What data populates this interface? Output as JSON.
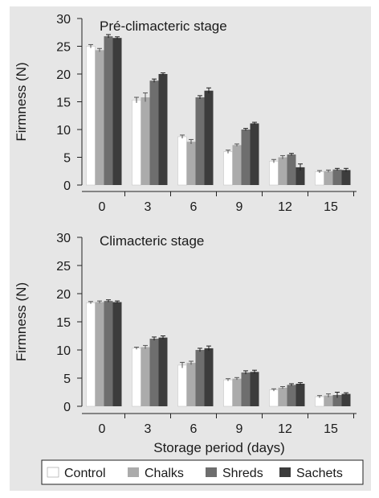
{
  "chart_data": [
    {
      "type": "bar",
      "title": "Pré-climacteric stage",
      "xlabel": "",
      "ylabel": "Firmness (N)",
      "ylim": [
        0,
        30
      ],
      "yticks": [
        "0",
        "5",
        "10",
        "15",
        "20",
        "25",
        "30"
      ],
      "categories": [
        "0",
        "3",
        "6",
        "9",
        "12",
        "15"
      ],
      "series": [
        {
          "name": "Control",
          "values": [
            25.0,
            15.3,
            8.7,
            6.0,
            4.3,
            2.4
          ],
          "errors": [
            0.3,
            0.5,
            0.3,
            0.3,
            0.3,
            0.2
          ]
        },
        {
          "name": "Chalks",
          "values": [
            24.3,
            15.8,
            7.8,
            7.2,
            5.0,
            2.5
          ],
          "errors": [
            0.3,
            0.8,
            0.4,
            0.2,
            0.3,
            0.2
          ]
        },
        {
          "name": "Shreds",
          "values": [
            26.8,
            18.8,
            15.8,
            10.0,
            5.5,
            2.8
          ],
          "errors": [
            0.3,
            0.3,
            0.3,
            0.2,
            0.2,
            0.2
          ]
        },
        {
          "name": "Sachets",
          "values": [
            26.5,
            20.0,
            17.0,
            11.1,
            3.2,
            2.7
          ],
          "errors": [
            0.2,
            0.2,
            0.5,
            0.2,
            0.6,
            0.3
          ]
        }
      ]
    },
    {
      "type": "bar",
      "title": "Climacteric stage",
      "xlabel": "Storage period (days)",
      "ylabel": "Firmness (N)",
      "ylim": [
        0,
        30
      ],
      "yticks": [
        "0",
        "5",
        "10",
        "15",
        "20",
        "25",
        "30"
      ],
      "categories": [
        "0",
        "3",
        "6",
        "9",
        "12",
        "15"
      ],
      "series": [
        {
          "name": "Control",
          "values": [
            18.4,
            10.3,
            7.3,
            4.7,
            2.9,
            1.7
          ],
          "errors": [
            0.2,
            0.2,
            0.5,
            0.2,
            0.2,
            0.2
          ]
        },
        {
          "name": "Chalks",
          "values": [
            18.5,
            10.5,
            7.7,
            4.9,
            3.3,
            1.9
          ],
          "errors": [
            0.2,
            0.3,
            0.3,
            0.2,
            0.2,
            0.3
          ]
        },
        {
          "name": "Shreds",
          "values": [
            18.7,
            12.0,
            10.0,
            6.0,
            3.8,
            2.0
          ],
          "errors": [
            0.2,
            0.3,
            0.3,
            0.3,
            0.2,
            0.5
          ]
        },
        {
          "name": "Sachets",
          "values": [
            18.5,
            12.2,
            10.3,
            6.1,
            4.0,
            2.2
          ],
          "errors": [
            0.2,
            0.3,
            0.4,
            0.3,
            0.2,
            0.2
          ]
        }
      ]
    }
  ],
  "legend": {
    "placement": "bottom",
    "items": [
      {
        "label": "Control",
        "color": "#ffffff"
      },
      {
        "label": "Chalks",
        "color": "#ababab"
      },
      {
        "label": "Shreds",
        "color": "#6e6e6e"
      },
      {
        "label": "Sachets",
        "color": "#3c3c3c"
      }
    ]
  }
}
